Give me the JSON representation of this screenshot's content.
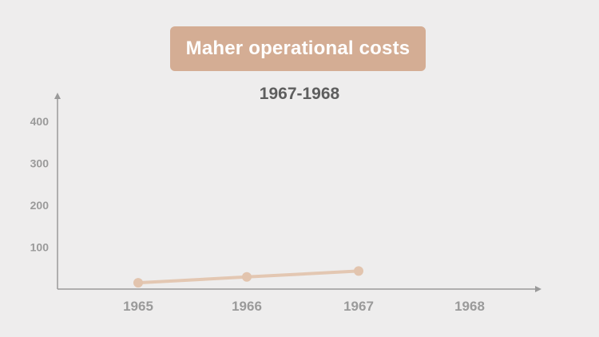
{
  "chart_data": {
    "type": "line",
    "title": "Maher operational costs",
    "subtitle": "1967-1968",
    "categories": [
      "1965",
      "1966",
      "1967",
      "1968"
    ],
    "series": [
      {
        "name": "Maher operational costs",
        "values": [
          15,
          29,
          43,
          null
        ]
      }
    ],
    "y_ticks": [
      "100",
      "200",
      "300",
      "400"
    ],
    "ylim": [
      0,
      450
    ],
    "xlabel": "",
    "ylabel": "",
    "colors": {
      "line": "#e3c7b2",
      "point": "#e2c4ae",
      "axis": "#9a9a9a",
      "title_bg": "#d4ad94"
    }
  }
}
